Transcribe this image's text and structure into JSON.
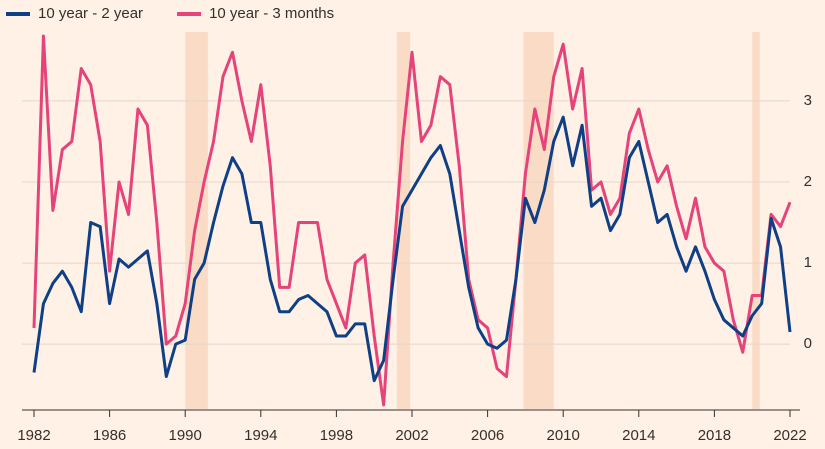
{
  "chart_data": {
    "type": "line",
    "x": [
      1982,
      1982.5,
      1983,
      1983.5,
      1984,
      1984.5,
      1985,
      1985.5,
      1986,
      1986.5,
      1987,
      1987.5,
      1988,
      1988.5,
      1989,
      1989.5,
      1990,
      1990.5,
      1991,
      1991.5,
      1992,
      1992.5,
      1993,
      1993.5,
      1994,
      1994.5,
      1995,
      1995.5,
      1996,
      1996.5,
      1997,
      1997.5,
      1998,
      1998.5,
      1999,
      1999.5,
      2000,
      2000.5,
      2001,
      2001.5,
      2002,
      2002.5,
      2003,
      2003.5,
      2004,
      2004.5,
      2005,
      2005.5,
      2006,
      2006.5,
      2007,
      2007.5,
      2008,
      2008.5,
      2009,
      2009.5,
      2010,
      2010.5,
      2011,
      2011.5,
      2012,
      2012.5,
      2013,
      2013.5,
      2014,
      2014.5,
      2015,
      2015.5,
      2016,
      2016.5,
      2017,
      2017.5,
      2018,
      2018.5,
      2019,
      2019.5,
      2020,
      2020.5,
      2021,
      2021.5,
      2022
    ],
    "series": [
      {
        "name": "10 year - 2 year",
        "color": "#0f3f85",
        "values": [
          -0.35,
          0.5,
          0.75,
          0.9,
          0.7,
          0.4,
          1.5,
          1.45,
          0.5,
          1.05,
          0.95,
          1.05,
          1.15,
          0.5,
          -0.4,
          0.0,
          0.05,
          0.8,
          1.0,
          1.5,
          1.95,
          2.3,
          2.1,
          1.5,
          1.5,
          0.8,
          0.4,
          0.4,
          0.55,
          0.6,
          0.5,
          0.4,
          0.1,
          0.1,
          0.25,
          0.25,
          -0.45,
          -0.2,
          0.8,
          1.7,
          1.9,
          2.1,
          2.3,
          2.45,
          2.1,
          1.4,
          0.7,
          0.2,
          0.0,
          -0.05,
          0.05,
          0.8,
          1.8,
          1.5,
          1.9,
          2.5,
          2.8,
          2.2,
          2.7,
          1.7,
          1.8,
          1.4,
          1.6,
          2.3,
          2.5,
          2.0,
          1.5,
          1.6,
          1.2,
          0.9,
          1.2,
          0.9,
          0.55,
          0.3,
          0.2,
          0.1,
          0.35,
          0.5,
          1.55,
          1.2,
          0.15
        ]
      },
      {
        "name": "10 year - 3 months",
        "color": "#e5437a",
        "values": [
          0.2,
          3.8,
          1.65,
          2.4,
          2.5,
          3.4,
          3.2,
          2.5,
          0.9,
          2.0,
          1.6,
          2.9,
          2.7,
          1.5,
          0.0,
          0.1,
          0.5,
          1.4,
          2.0,
          2.5,
          3.3,
          3.6,
          3.0,
          2.5,
          3.2,
          2.2,
          0.7,
          0.7,
          1.5,
          1.5,
          1.5,
          0.8,
          0.5,
          0.2,
          1.0,
          1.1,
          0.1,
          -0.75,
          1.0,
          2.5,
          3.6,
          2.5,
          2.7,
          3.3,
          3.2,
          2.2,
          0.8,
          0.3,
          0.2,
          -0.3,
          -0.4,
          0.8,
          2.1,
          2.9,
          2.4,
          3.3,
          3.7,
          2.9,
          3.4,
          1.9,
          2.0,
          1.6,
          1.8,
          2.6,
          2.9,
          2.4,
          2.0,
          2.2,
          1.7,
          1.3,
          1.8,
          1.2,
          1.0,
          0.9,
          0.3,
          -0.1,
          0.6,
          0.6,
          1.6,
          1.45,
          1.75
        ]
      }
    ],
    "recessions": [
      [
        1990.0,
        1991.2
      ],
      [
        2001.2,
        2001.9
      ],
      [
        2007.9,
        2009.5
      ],
      [
        2020.0,
        2020.4
      ]
    ],
    "recession_color": "#fadcc6",
    "xlim": [
      1982,
      2022
    ],
    "xticks": [
      1982,
      1986,
      1990,
      1994,
      1998,
      2002,
      2006,
      2010,
      2014,
      2018,
      2022
    ],
    "ylim": [
      -0.8,
      3.85
    ],
    "yticks": [
      0,
      1,
      2,
      3
    ],
    "grid": true
  }
}
